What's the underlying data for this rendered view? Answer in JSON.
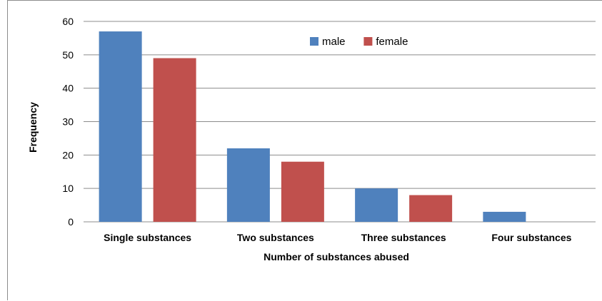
{
  "chart_data": {
    "type": "bar",
    "title": "",
    "xlabel": "Number of substances abused",
    "ylabel": "Frequency",
    "categories": [
      "Single substances",
      "Two substances",
      "Three substances",
      "Four substances"
    ],
    "series": [
      {
        "name": "male",
        "color": "#4f81bd",
        "values": [
          57,
          22,
          10,
          3
        ]
      },
      {
        "name": "female",
        "color": "#c0504d",
        "values": [
          49,
          18,
          8,
          0
        ]
      }
    ],
    "ylim": [
      0,
      60
    ],
    "yticks": [
      0,
      10,
      20,
      30,
      40,
      50,
      60
    ],
    "grid": true,
    "legend_position": "top-center"
  }
}
